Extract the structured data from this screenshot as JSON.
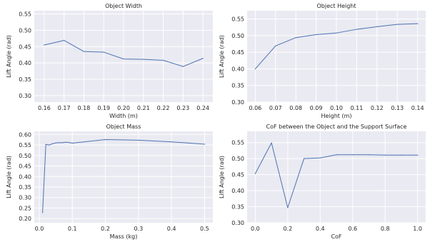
{
  "figure": {
    "background_color": "#ffffff",
    "axes_face_color": "#eaeaf2",
    "grid_color": "#ffffff",
    "line_color": "#4c72b0",
    "text_color": "#262626"
  },
  "chart_data": [
    {
      "type": "line",
      "title": "Object Width",
      "xlabel": "Width (m)",
      "ylabel": "Lift Angle (rad)",
      "xlim": [
        0.155,
        0.245
      ],
      "ylim": [
        0.28,
        0.56
      ],
      "xticks": [
        0.16,
        0.17,
        0.18,
        0.19,
        0.2,
        0.21,
        0.22,
        0.23,
        0.24
      ],
      "xtick_labels": [
        "0.16",
        "0.17",
        "0.18",
        "0.19",
        "0.20",
        "0.21",
        "0.22",
        "0.23",
        "0.24"
      ],
      "yticks": [
        0.3,
        0.35,
        0.4,
        0.45,
        0.5,
        0.55
      ],
      "ytick_labels": [
        "0.30",
        "0.35",
        "0.40",
        "0.45",
        "0.50",
        "0.55"
      ],
      "grid": true,
      "series": [
        {
          "x": [
            0.16,
            0.17,
            0.18,
            0.19,
            0.2,
            0.21,
            0.22,
            0.23,
            0.24
          ],
          "y": [
            0.455,
            0.469,
            0.435,
            0.433,
            0.412,
            0.411,
            0.408,
            0.389,
            0.414
          ]
        }
      ]
    },
    {
      "type": "line",
      "title": "Object Height",
      "xlabel": "Height (m)",
      "ylabel": "Lift Angle (rad)",
      "xlim": [
        0.056,
        0.144
      ],
      "ylim": [
        0.3,
        0.575
      ],
      "xticks": [
        0.06,
        0.07,
        0.08,
        0.09,
        0.1,
        0.11,
        0.12,
        0.13,
        0.14
      ],
      "xtick_labels": [
        "0.06",
        "0.07",
        "0.08",
        "0.09",
        "0.10",
        "0.11",
        "0.12",
        "0.13",
        "0.14"
      ],
      "yticks": [
        0.3,
        0.35,
        0.4,
        0.45,
        0.5,
        0.55
      ],
      "ytick_labels": [
        "0.30",
        "0.35",
        "0.40",
        "0.45",
        "0.50",
        "0.55"
      ],
      "grid": true,
      "series": [
        {
          "x": [
            0.06,
            0.07,
            0.08,
            0.09,
            0.1,
            0.11,
            0.12,
            0.13,
            0.14
          ],
          "y": [
            0.4,
            0.469,
            0.494,
            0.503,
            0.508,
            0.519,
            0.527,
            0.534,
            0.536
          ]
        }
      ]
    },
    {
      "type": "line",
      "title": "Object Mass",
      "xlabel": "Mass (kg)",
      "ylabel": "Lift Angle (rad)",
      "xlim": [
        -0.015,
        0.525
      ],
      "ylim": [
        0.18,
        0.615
      ],
      "xticks": [
        0.0,
        0.1,
        0.2,
        0.3,
        0.4,
        0.5
      ],
      "xtick_labels": [
        "0.0",
        "0.1",
        "0.2",
        "0.3",
        "0.4",
        "0.5"
      ],
      "yticks": [
        0.2,
        0.25,
        0.3,
        0.35,
        0.4,
        0.45,
        0.5,
        0.55,
        0.6
      ],
      "ytick_labels": [
        "0.20",
        "0.25",
        "0.30",
        "0.35",
        "0.40",
        "0.45",
        "0.50",
        "0.55",
        "0.60"
      ],
      "grid": true,
      "series": [
        {
          "x": [
            0.01,
            0.02,
            0.03,
            0.04,
            0.05,
            0.06,
            0.07,
            0.08,
            0.09,
            0.1,
            0.2,
            0.3,
            0.4,
            0.5
          ],
          "y": [
            0.228,
            0.553,
            0.55,
            0.556,
            0.56,
            0.561,
            0.561,
            0.563,
            0.562,
            0.559,
            0.576,
            0.573,
            0.565,
            0.554
          ]
        }
      ]
    },
    {
      "type": "line",
      "title": "CoF between the Object and the Support Surface",
      "xlabel": "CoF",
      "ylabel": "Lift Angle (rad)",
      "xlim": [
        -0.05,
        1.05
      ],
      "ylim": [
        0.3,
        0.585
      ],
      "xticks": [
        0.0,
        0.2,
        0.4,
        0.6,
        0.8,
        1.0
      ],
      "xtick_labels": [
        "0.0",
        "0.2",
        "0.4",
        "0.6",
        "0.8",
        "1.0"
      ],
      "yticks": [
        0.3,
        0.35,
        0.4,
        0.45,
        0.5,
        0.55
      ],
      "ytick_labels": [
        "0.30",
        "0.35",
        "0.40",
        "0.45",
        "0.50",
        "0.55"
      ],
      "grid": true,
      "series": [
        {
          "x": [
            0.0,
            0.1,
            0.2,
            0.3,
            0.4,
            0.5,
            0.6,
            0.7,
            0.8,
            0.9,
            1.0
          ],
          "y": [
            0.453,
            0.549,
            0.347,
            0.5,
            0.502,
            0.512,
            0.512,
            0.512,
            0.511,
            0.511,
            0.511
          ]
        }
      ]
    }
  ]
}
